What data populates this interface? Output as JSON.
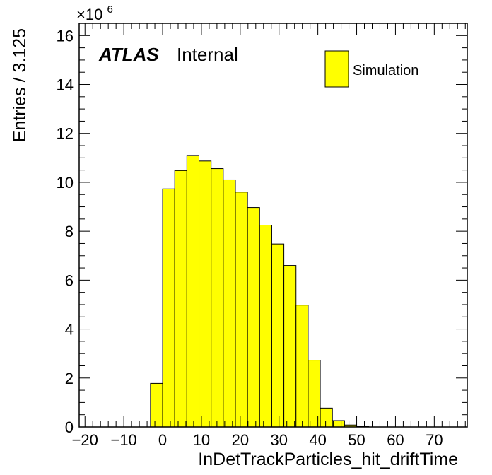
{
  "chart_data": {
    "type": "bar",
    "title": "",
    "xlabel": "InDetTrackParticles_hit_driftTime",
    "ylabel": "Entries / 3.125",
    "y_multiplier_base": "×10",
    "y_multiplier_exp": "6",
    "xlim": [
      -21.5,
      78.5
    ],
    "ylim": [
      0,
      16.5
    ],
    "y_scale_note": "values in units of 10^6",
    "x_ticks": [
      -20,
      -10,
      0,
      10,
      20,
      30,
      40,
      50,
      60,
      70
    ],
    "x_tick_labels": [
      "−20",
      "−10",
      "0",
      "10",
      "20",
      "30",
      "40",
      "50",
      "60",
      "70"
    ],
    "y_ticks": [
      0,
      2,
      4,
      6,
      8,
      10,
      12,
      14,
      16
    ],
    "y_tick_labels": [
      "0",
      "2",
      "4",
      "6",
      "8",
      "10",
      "12",
      "14",
      "16"
    ],
    "bin_width": 3.125,
    "bin_edges": [
      -3.125,
      0.0,
      3.125,
      6.25,
      9.375,
      12.5,
      15.625,
      18.75,
      21.875,
      25.0,
      28.125,
      31.25,
      34.375,
      37.5,
      40.625,
      43.75,
      46.875,
      50.0,
      53.125
    ],
    "series": [
      {
        "name": "Simulation",
        "values": [
          1.78,
          9.73,
          10.48,
          11.1,
          10.87,
          10.56,
          10.1,
          9.6,
          8.97,
          8.25,
          7.48,
          6.6,
          4.98,
          2.73,
          0.77,
          0.26,
          0.08,
          0.02
        ]
      }
    ],
    "legend": {
      "position": "top-right",
      "entries": [
        "Simulation"
      ]
    },
    "fill_color": "#ffff00",
    "edge_color": "#000000",
    "grid": false,
    "annotations": {
      "atlas_label": "ATLAS",
      "atlas_status": "Internal"
    }
  }
}
